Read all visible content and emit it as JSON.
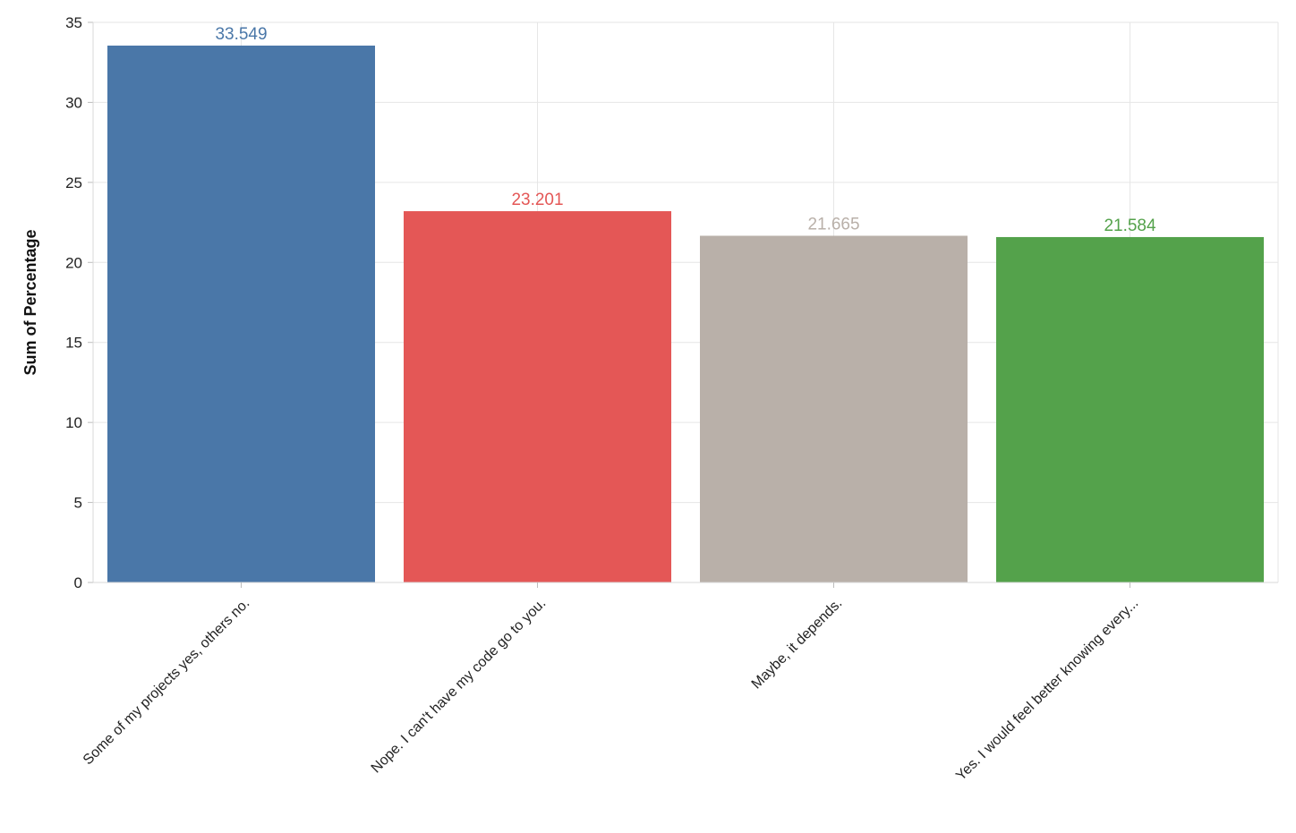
{
  "chart_data": {
    "type": "bar",
    "title": "",
    "xlabel": "",
    "ylabel": "Sum of Percentage",
    "ylim": [
      0,
      35
    ],
    "yticks": [
      0,
      5,
      10,
      15,
      20,
      25,
      30,
      35
    ],
    "grid": true,
    "categories": [
      "Some of my projects yes, others no.",
      "Nope. I can't have my code go to you.",
      "Maybe, it depends.",
      "Yes. I would feel better knowing every..."
    ],
    "values": [
      33.549,
      23.201,
      21.665,
      21.584
    ],
    "value_labels": [
      "33.549",
      "23.201",
      "21.665",
      "21.584"
    ],
    "colors": [
      "#4a77a8",
      "#e45756",
      "#b9b0a9",
      "#54a24b"
    ]
  }
}
